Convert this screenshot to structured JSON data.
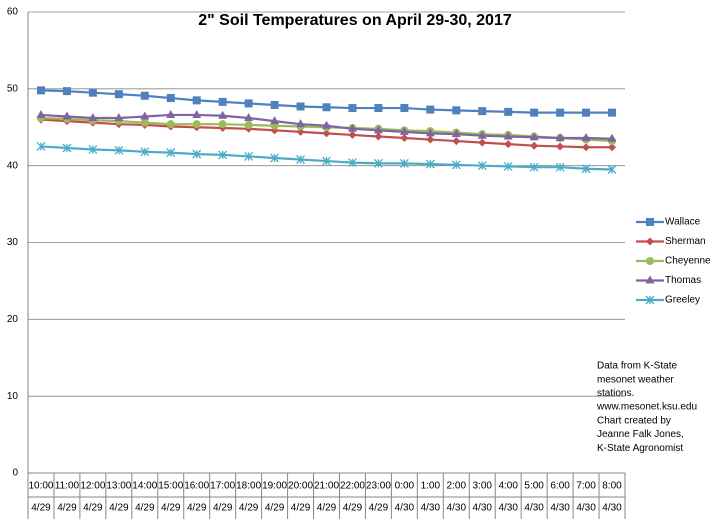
{
  "chart_data": {
    "type": "line",
    "title": "2\" Soil  Temperatures on April 29-30, 2017",
    "categories": [
      "10:00",
      "11:00",
      "12:00",
      "13:00",
      "14:00",
      "15:00",
      "16:00",
      "17:00",
      "18:00",
      "19:00",
      "20:00",
      "21:00",
      "22:00",
      "23:00",
      "0:00",
      "1:00",
      "2:00",
      "3:00",
      "4:00",
      "5:00",
      "6:00",
      "7:00",
      "8:00"
    ],
    "category_dates": [
      "4/29",
      "4/29",
      "4/29",
      "4/29",
      "4/29",
      "4/29",
      "4/29",
      "4/29",
      "4/29",
      "4/29",
      "4/29",
      "4/29",
      "4/29",
      "4/29",
      "4/30",
      "4/30",
      "4/30",
      "4/30",
      "4/30",
      "4/30",
      "4/30",
      "4/30",
      "4/30"
    ],
    "series": [
      {
        "name": "Wallace",
        "color": "#4f81bd",
        "marker": "square",
        "values": [
          49.8,
          49.7,
          49.5,
          49.3,
          49.1,
          48.8,
          48.5,
          48.3,
          48.1,
          47.9,
          47.7,
          47.6,
          47.5,
          47.5,
          47.5,
          47.3,
          47.2,
          47.1,
          47.0,
          46.9,
          46.9,
          46.9,
          46.9
        ]
      },
      {
        "name": "Sherman",
        "color": "#c0504d",
        "marker": "diamond",
        "values": [
          46.0,
          45.8,
          45.6,
          45.4,
          45.3,
          45.1,
          45.0,
          44.9,
          44.8,
          44.6,
          44.4,
          44.2,
          44.0,
          43.8,
          43.6,
          43.4,
          43.2,
          43.0,
          42.8,
          42.6,
          42.5,
          42.4,
          42.4
        ]
      },
      {
        "name": "Cheyenne",
        "color": "#9bbb59",
        "marker": "circle",
        "values": [
          46.2,
          46.1,
          45.9,
          45.8,
          45.6,
          45.4,
          45.4,
          45.4,
          45.3,
          45.2,
          45.1,
          45.0,
          44.9,
          44.8,
          44.6,
          44.5,
          44.3,
          44.1,
          44.0,
          43.8,
          43.6,
          43.4,
          43.2
        ]
      },
      {
        "name": "Thomas",
        "color": "#8064a2",
        "marker": "triangle",
        "values": [
          46.6,
          46.4,
          46.2,
          46.2,
          46.4,
          46.6,
          46.6,
          46.5,
          46.2,
          45.8,
          45.4,
          45.2,
          44.8,
          44.6,
          44.4,
          44.2,
          44.1,
          43.9,
          43.8,
          43.7,
          43.6,
          43.6,
          43.5
        ]
      },
      {
        "name": "Greeley",
        "color": "#4bacc6",
        "marker": "asterisk",
        "values": [
          42.5,
          42.3,
          42.1,
          42.0,
          41.8,
          41.7,
          41.5,
          41.4,
          41.2,
          41.0,
          40.8,
          40.6,
          40.4,
          40.3,
          40.3,
          40.2,
          40.1,
          40.0,
          39.9,
          39.8,
          39.8,
          39.6,
          39.5
        ]
      }
    ],
    "ylim": [
      0,
      60
    ],
    "yticks": [
      0,
      10,
      20,
      30,
      40,
      50,
      60
    ],
    "grid": true,
    "legend": "right",
    "note": [
      "Data from K-State",
      "mesonet weather",
      "stations.",
      "www.mesonet.ksu.edu",
      "Chart created by",
      "Jeanne Falk Jones,",
      "K-State Agronomist"
    ]
  }
}
